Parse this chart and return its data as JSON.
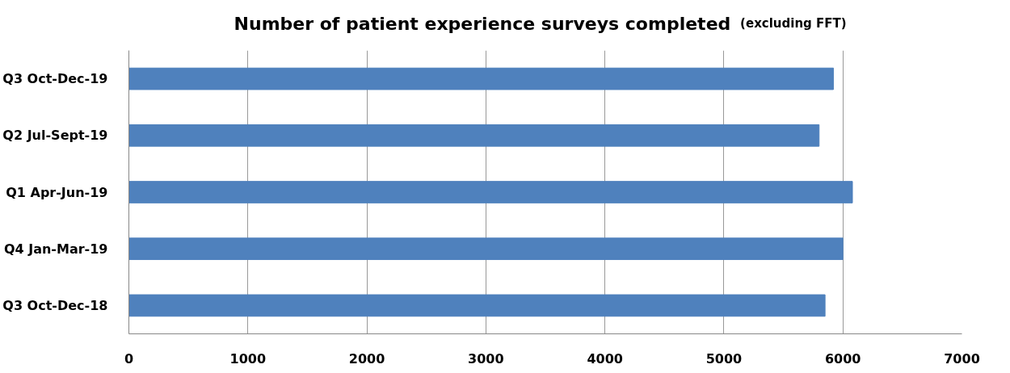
{
  "chart_data": {
    "type": "bar",
    "orientation": "horizontal",
    "title": "Number of patient experience surveys completed",
    "subtitle": "(excluding FFT)",
    "categories": [
      "Q3 Oct-Dec-19",
      "Q2 Jul-Sept-19",
      "Q1 Apr-Jun-19",
      "Q4 Jan-Mar-19",
      "Q3 Oct-Dec-18"
    ],
    "values": [
      5920,
      5800,
      6080,
      6000,
      5850
    ],
    "color": "#4f81bd",
    "xlim": [
      0,
      7000
    ],
    "xticks": [
      0,
      1000,
      2000,
      3000,
      4000,
      5000,
      6000,
      7000
    ],
    "grid": "x"
  }
}
